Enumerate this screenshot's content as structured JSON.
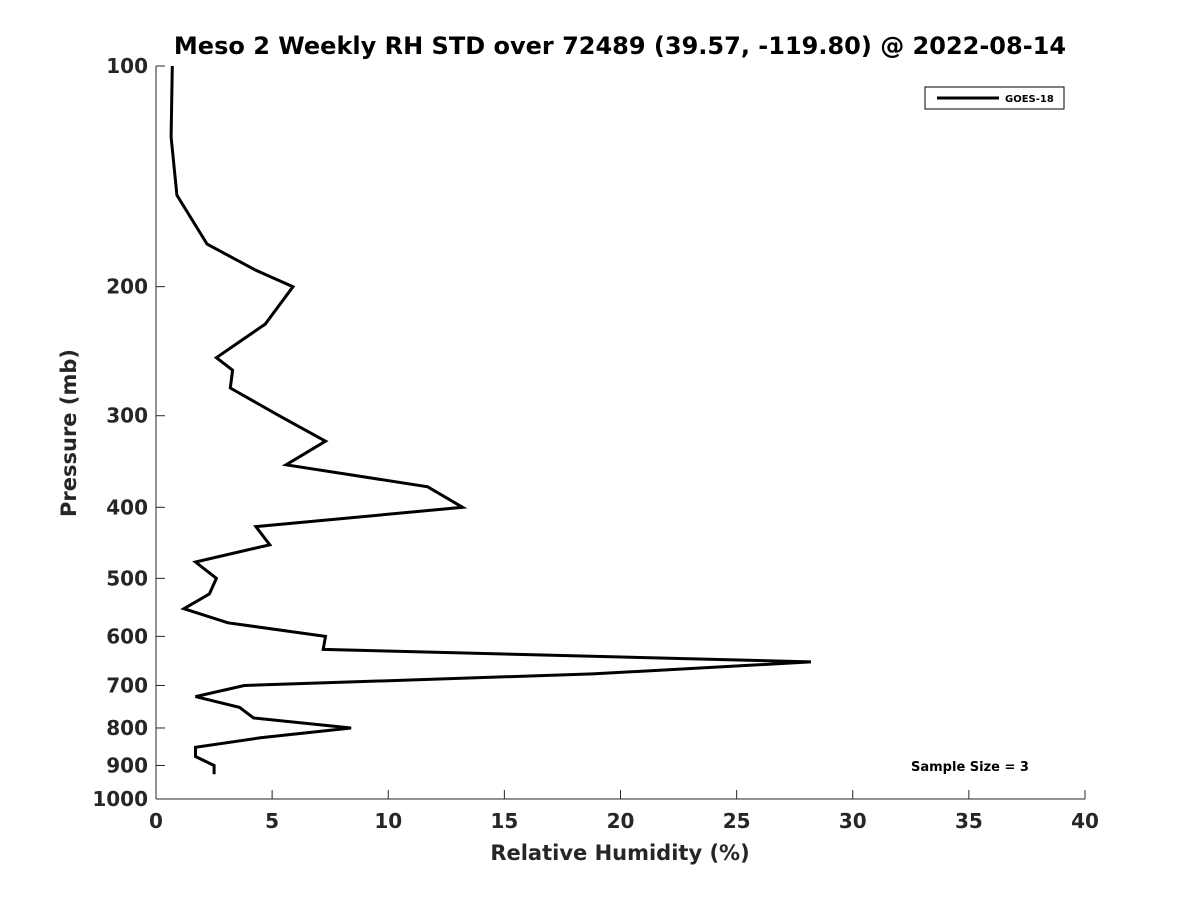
{
  "chart_data": {
    "type": "line",
    "title": "Meso 2 Weekly RH STD over 72489 (39.57, -119.80) @ 2022-08-14",
    "xlabel": "Relative Humidity (%)",
    "ylabel": "Pressure (mb)",
    "xlim": [
      0,
      40
    ],
    "ylim": [
      100,
      1000
    ],
    "y_scale": "log",
    "y_reversed": true,
    "xticks": [
      0,
      5,
      10,
      15,
      20,
      25,
      30,
      35,
      40
    ],
    "xtick_labels": [
      "0",
      "5",
      "10",
      "15",
      "20",
      "25",
      "30",
      "35",
      "40"
    ],
    "yticks": [
      100,
      200,
      300,
      400,
      500,
      600,
      700,
      800,
      900,
      1000
    ],
    "ytick_labels": [
      "100",
      "200",
      "300",
      "400",
      "500",
      "600",
      "700",
      "800",
      "900",
      "1000"
    ],
    "legend_position": "top-right",
    "annotation": "Sample Size = 3",
    "series": [
      {
        "name": "GOES-18",
        "color": "#000000",
        "points": [
          {
            "x": 0.7,
            "p": 100
          },
          {
            "x": 0.65,
            "p": 125
          },
          {
            "x": 0.9,
            "p": 150
          },
          {
            "x": 2.2,
            "p": 175
          },
          {
            "x": 4.3,
            "p": 190
          },
          {
            "x": 5.9,
            "p": 200
          },
          {
            "x": 4.7,
            "p": 225
          },
          {
            "x": 2.6,
            "p": 250
          },
          {
            "x": 3.3,
            "p": 260
          },
          {
            "x": 3.2,
            "p": 275
          },
          {
            "x": 5.3,
            "p": 300
          },
          {
            "x": 7.3,
            "p": 325
          },
          {
            "x": 5.6,
            "p": 350
          },
          {
            "x": 11.7,
            "p": 375
          },
          {
            "x": 13.2,
            "p": 400
          },
          {
            "x": 4.3,
            "p": 425
          },
          {
            "x": 4.9,
            "p": 450
          },
          {
            "x": 1.7,
            "p": 475
          },
          {
            "x": 2.6,
            "p": 500
          },
          {
            "x": 2.3,
            "p": 525
          },
          {
            "x": 1.2,
            "p": 550
          },
          {
            "x": 3.1,
            "p": 575
          },
          {
            "x": 7.3,
            "p": 600
          },
          {
            "x": 7.2,
            "p": 625
          },
          {
            "x": 28.2,
            "p": 650
          },
          {
            "x": 18.8,
            "p": 675
          },
          {
            "x": 3.8,
            "p": 700
          },
          {
            "x": 1.7,
            "p": 725
          },
          {
            "x": 3.6,
            "p": 750
          },
          {
            "x": 4.2,
            "p": 775
          },
          {
            "x": 8.4,
            "p": 800
          },
          {
            "x": 4.5,
            "p": 825
          },
          {
            "x": 1.7,
            "p": 850
          },
          {
            "x": 1.7,
            "p": 875
          },
          {
            "x": 2.5,
            "p": 900
          },
          {
            "x": 2.5,
            "p": 925
          }
        ]
      }
    ]
  }
}
